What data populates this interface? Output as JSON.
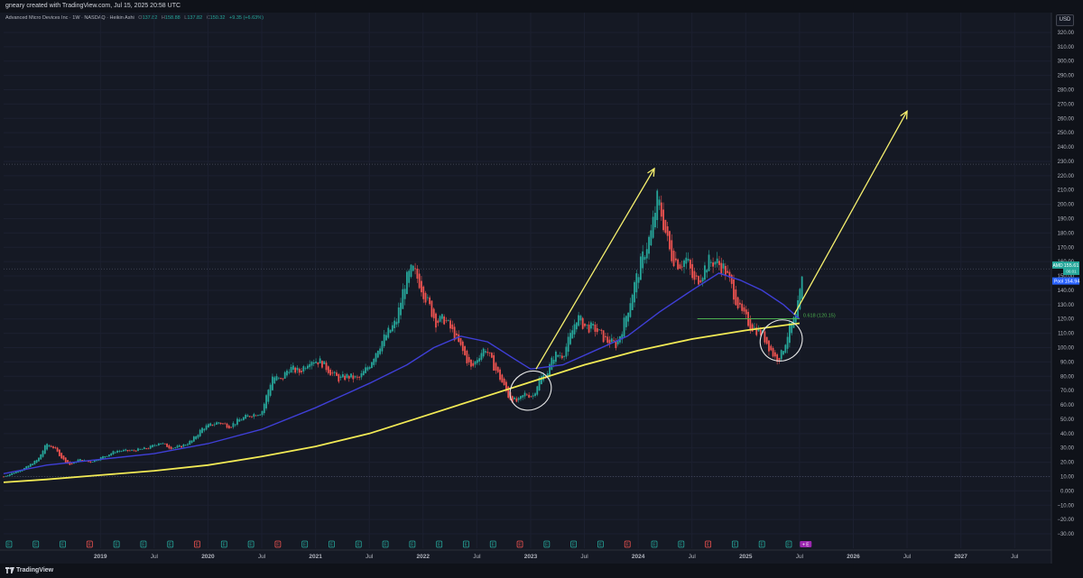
{
  "credit_line": "gneary created with TradingView.com, Jul 15, 2025 20:58 UTC",
  "header": {
    "symbol_line": "Advanced Micro Devices Inc · 1W · NASDAQ · Heikin Ashi",
    "open_label": "O",
    "open_value": "137.82",
    "high_label": "H",
    "high_value": "158.88",
    "low_label": "L",
    "low_value": "137.82",
    "close_label": "C",
    "close_value": "150.32",
    "change": "+9.35 (+6.63%)"
  },
  "currency_button": "USD",
  "footer": {
    "brand": "TradingView",
    "logo_icon": "tradingview-logo-icon"
  },
  "colors": {
    "background": "#151924",
    "up_candle": "#26a69a",
    "down_candle": "#ef5350",
    "ma_blue": "#3f3fd6",
    "ma_yellow": "#f2ea55",
    "projection_arrows": "#f5ef6e",
    "fib_line": "#4caf50",
    "amd_tag": "#26a69a",
    "poc_tag": "#2962ff"
  },
  "chart_data": {
    "type": "candlestick",
    "chart_style": "Heikin Ashi",
    "interval": "1W",
    "y_axis": {
      "ticks": [
        320,
        310,
        300,
        290,
        280,
        270,
        260,
        250,
        240,
        230,
        220,
        210,
        200,
        190,
        180,
        170,
        160,
        150,
        140,
        130,
        120,
        110,
        100,
        90,
        80,
        70,
        60,
        50,
        40,
        30,
        20,
        10,
        0,
        -10,
        -20,
        -30
      ],
      "tick_labels": [
        "320.00",
        "310.00",
        "300.00",
        "290.00",
        "280.00",
        "270.00",
        "260.00",
        "250.00",
        "240.00",
        "230.00",
        "220.00",
        "210.00",
        "200.00",
        "190.00",
        "180.00",
        "170.00",
        "160.00",
        "150.00",
        "140.00",
        "130.00",
        "120.00",
        "110.00",
        "100.00",
        "90.00",
        "80.00",
        "70.00",
        "60.00",
        "50.00",
        "40.00",
        "30.00",
        "20.00",
        "10.00",
        "0.000",
        "−10.00",
        "−20.00",
        "−30.00"
      ],
      "range": [
        -35,
        325
      ]
    },
    "x_axis": {
      "range": [
        2018.1,
        2027.8
      ],
      "ticks": [
        {
          "label": "2019",
          "x": 2019.0
        },
        {
          "label": "Jul",
          "x": 2019.5
        },
        {
          "label": "2020",
          "x": 2020.0
        },
        {
          "label": "Jul",
          "x": 2020.5
        },
        {
          "label": "2021",
          "x": 2021.0
        },
        {
          "label": "Jul",
          "x": 2021.5
        },
        {
          "label": "2022",
          "x": 2022.0
        },
        {
          "label": "Jul",
          "x": 2022.5
        },
        {
          "label": "2023",
          "x": 2023.0
        },
        {
          "label": "Jul",
          "x": 2023.5
        },
        {
          "label": "2024",
          "x": 2024.0
        },
        {
          "label": "Jul",
          "x": 2024.5
        },
        {
          "label": "2025",
          "x": 2025.0
        },
        {
          "label": "Jul",
          "x": 2025.5
        },
        {
          "label": "2026",
          "x": 2026.0
        },
        {
          "label": "Jul",
          "x": 2026.5
        },
        {
          "label": "2027",
          "x": 2027.0
        },
        {
          "label": "Jul",
          "x": 2027.5
        }
      ]
    },
    "price_path": [
      [
        2018.1,
        10
      ],
      [
        2018.3,
        16
      ],
      [
        2018.42,
        22
      ],
      [
        2018.5,
        33
      ],
      [
        2018.57,
        30
      ],
      [
        2018.65,
        22
      ],
      [
        2018.72,
        18
      ],
      [
        2018.8,
        22
      ],
      [
        2018.9,
        20
      ],
      [
        2019.0,
        23
      ],
      [
        2019.15,
        28
      ],
      [
        2019.3,
        28
      ],
      [
        2019.45,
        30
      ],
      [
        2019.55,
        34
      ],
      [
        2019.65,
        30
      ],
      [
        2019.75,
        31
      ],
      [
        2019.85,
        35
      ],
      [
        2019.95,
        44
      ],
      [
        2020.1,
        48
      ],
      [
        2020.2,
        45
      ],
      [
        2020.3,
        50
      ],
      [
        2020.4,
        53
      ],
      [
        2020.5,
        55
      ],
      [
        2020.55,
        68
      ],
      [
        2020.6,
        80
      ],
      [
        2020.68,
        77
      ],
      [
        2020.75,
        86
      ],
      [
        2020.85,
        83
      ],
      [
        2020.95,
        92
      ],
      [
        2021.05,
        90
      ],
      [
        2021.15,
        82
      ],
      [
        2021.22,
        78
      ],
      [
        2021.3,
        80
      ],
      [
        2021.4,
        78
      ],
      [
        2021.5,
        88
      ],
      [
        2021.58,
        100
      ],
      [
        2021.65,
        108
      ],
      [
        2021.75,
        118
      ],
      [
        2021.83,
        145
      ],
      [
        2021.9,
        155
      ],
      [
        2021.97,
        145
      ],
      [
        2022.05,
        130
      ],
      [
        2022.12,
        118
      ],
      [
        2022.2,
        120
      ],
      [
        2022.28,
        110
      ],
      [
        2022.35,
        100
      ],
      [
        2022.45,
        85
      ],
      [
        2022.52,
        95
      ],
      [
        2022.58,
        100
      ],
      [
        2022.65,
        88
      ],
      [
        2022.72,
        78
      ],
      [
        2022.8,
        65
      ],
      [
        2022.88,
        62
      ],
      [
        2022.95,
        68
      ],
      [
        2023.02,
        66
      ],
      [
        2023.08,
        78
      ],
      [
        2023.15,
        82
      ],
      [
        2023.22,
        95
      ],
      [
        2023.3,
        95
      ],
      [
        2023.38,
        110
      ],
      [
        2023.43,
        122
      ],
      [
        2023.5,
        115
      ],
      [
        2023.6,
        113
      ],
      [
        2023.7,
        105
      ],
      [
        2023.8,
        102
      ],
      [
        2023.88,
        120
      ],
      [
        2023.95,
        140
      ],
      [
        2024.05,
        165
      ],
      [
        2024.12,
        180
      ],
      [
        2024.18,
        205
      ],
      [
        2024.24,
        185
      ],
      [
        2024.3,
        165
      ],
      [
        2024.38,
        158
      ],
      [
        2024.45,
        162
      ],
      [
        2024.52,
        145
      ],
      [
        2024.58,
        150
      ],
      [
        2024.65,
        160
      ],
      [
        2024.72,
        160
      ],
      [
        2024.8,
        155
      ],
      [
        2024.88,
        140
      ],
      [
        2024.95,
        125
      ],
      [
        2025.05,
        115
      ],
      [
        2025.15,
        110
      ],
      [
        2025.22,
        100
      ],
      [
        2025.28,
        92
      ],
      [
        2025.33,
        95
      ],
      [
        2025.4,
        112
      ],
      [
        2025.47,
        122
      ],
      [
        2025.53,
        150
      ]
    ],
    "overlays": {
      "moving_average_blue": [
        [
          2018.1,
          12
        ],
        [
          2018.5,
          18
        ],
        [
          2019.0,
          22
        ],
        [
          2019.5,
          26
        ],
        [
          2020.0,
          33
        ],
        [
          2020.5,
          43
        ],
        [
          2021.0,
          58
        ],
        [
          2021.5,
          75
        ],
        [
          2021.85,
          88
        ],
        [
          2022.1,
          100
        ],
        [
          2022.35,
          108
        ],
        [
          2022.6,
          104
        ],
        [
          2022.85,
          92
        ],
        [
          2023.0,
          85
        ],
        [
          2023.3,
          88
        ],
        [
          2023.6,
          98
        ],
        [
          2023.9,
          108
        ],
        [
          2024.2,
          125
        ],
        [
          2024.5,
          140
        ],
        [
          2024.75,
          152
        ],
        [
          2024.95,
          147
        ],
        [
          2025.15,
          140
        ],
        [
          2025.35,
          130
        ],
        [
          2025.5,
          120
        ]
      ],
      "moving_average_yellow": [
        [
          2018.1,
          6
        ],
        [
          2018.5,
          8
        ],
        [
          2019.0,
          11
        ],
        [
          2019.5,
          14
        ],
        [
          2020.0,
          18
        ],
        [
          2020.5,
          24
        ],
        [
          2021.0,
          31
        ],
        [
          2021.5,
          40
        ],
        [
          2022.0,
          52
        ],
        [
          2022.5,
          64
        ],
        [
          2023.0,
          76
        ],
        [
          2023.5,
          88
        ],
        [
          2024.0,
          98
        ],
        [
          2024.5,
          106
        ],
        [
          2025.0,
          112
        ],
        [
          2025.5,
          117
        ]
      ],
      "fib_level": {
        "label": "0.618 (120.15)",
        "y": 120.15,
        "x_start": 2024.55,
        "x_end": 2025.5
      },
      "projection_arrows": [
        {
          "from": [
            2023.05,
            85
          ],
          "to": [
            2024.15,
            225
          ]
        },
        {
          "from": [
            2025.45,
            123
          ],
          "to": [
            2026.5,
            265
          ]
        }
      ],
      "circles": [
        {
          "center": [
            2023.0,
            70
          ],
          "radius_units_x": 0.2,
          "radius_units_y": 13
        },
        {
          "center": [
            2025.33,
            105
          ],
          "radius_units_x": 0.2,
          "radius_units_y": 14
        }
      ]
    },
    "price_tags": [
      {
        "label": "AMD",
        "value": "155.61",
        "sub": "06:01"
      },
      {
        "label": "Pool",
        "value": "154.94"
      }
    ],
    "horizontal_lines": [
      228,
      154.9,
      10
    ],
    "earnings_markers": [
      {
        "x": 2018.15,
        "text": "E"
      },
      {
        "x": 2018.4,
        "text": "E"
      },
      {
        "x": 2018.65,
        "text": "E"
      },
      {
        "x": 2018.9,
        "text": "E"
      },
      {
        "x": 2019.15,
        "text": "E"
      },
      {
        "x": 2019.4,
        "text": "E"
      },
      {
        "x": 2019.65,
        "text": "E"
      },
      {
        "x": 2019.9,
        "text": "E"
      },
      {
        "x": 2020.15,
        "text": "E"
      },
      {
        "x": 2020.4,
        "text": "E"
      },
      {
        "x": 2020.65,
        "text": "E"
      },
      {
        "x": 2020.9,
        "text": "E"
      },
      {
        "x": 2021.15,
        "text": "E"
      },
      {
        "x": 2021.4,
        "text": "E"
      },
      {
        "x": 2021.65,
        "text": "E"
      },
      {
        "x": 2021.9,
        "text": "E"
      },
      {
        "x": 2022.15,
        "text": "E"
      },
      {
        "x": 2022.4,
        "text": "E"
      },
      {
        "x": 2022.65,
        "text": "E"
      },
      {
        "x": 2022.9,
        "text": "E"
      },
      {
        "x": 2023.15,
        "text": "E"
      },
      {
        "x": 2023.4,
        "text": "E"
      },
      {
        "x": 2023.65,
        "text": "E"
      },
      {
        "x": 2023.9,
        "text": "E"
      },
      {
        "x": 2024.15,
        "text": "E"
      },
      {
        "x": 2024.4,
        "text": "E"
      },
      {
        "x": 2024.65,
        "text": "E"
      },
      {
        "x": 2024.9,
        "text": "E"
      },
      {
        "x": 2025.15,
        "text": "E"
      },
      {
        "x": 2025.4,
        "text": "E"
      }
    ],
    "earnings_colors": [
      "#26a69a",
      "#26a69a",
      "#26a69a",
      "#ef5350",
      "#26a69a",
      "#26a69a",
      "#26a69a",
      "#ef5350",
      "#26a69a",
      "#26a69a",
      "#ef5350",
      "#26a69a",
      "#26a69a",
      "#26a69a",
      "#26a69a",
      "#26a69a",
      "#26a69a",
      "#26a69a",
      "#26a69a",
      "#ef5350",
      "#26a69a",
      "#26a69a",
      "#26a69a",
      "#ef5350",
      "#26a69a",
      "#26a69a",
      "#ef5350",
      "#26a69a",
      "#26a69a",
      "#26a69a"
    ],
    "future_marker": {
      "x": 2025.52,
      "text": "+ E"
    }
  }
}
